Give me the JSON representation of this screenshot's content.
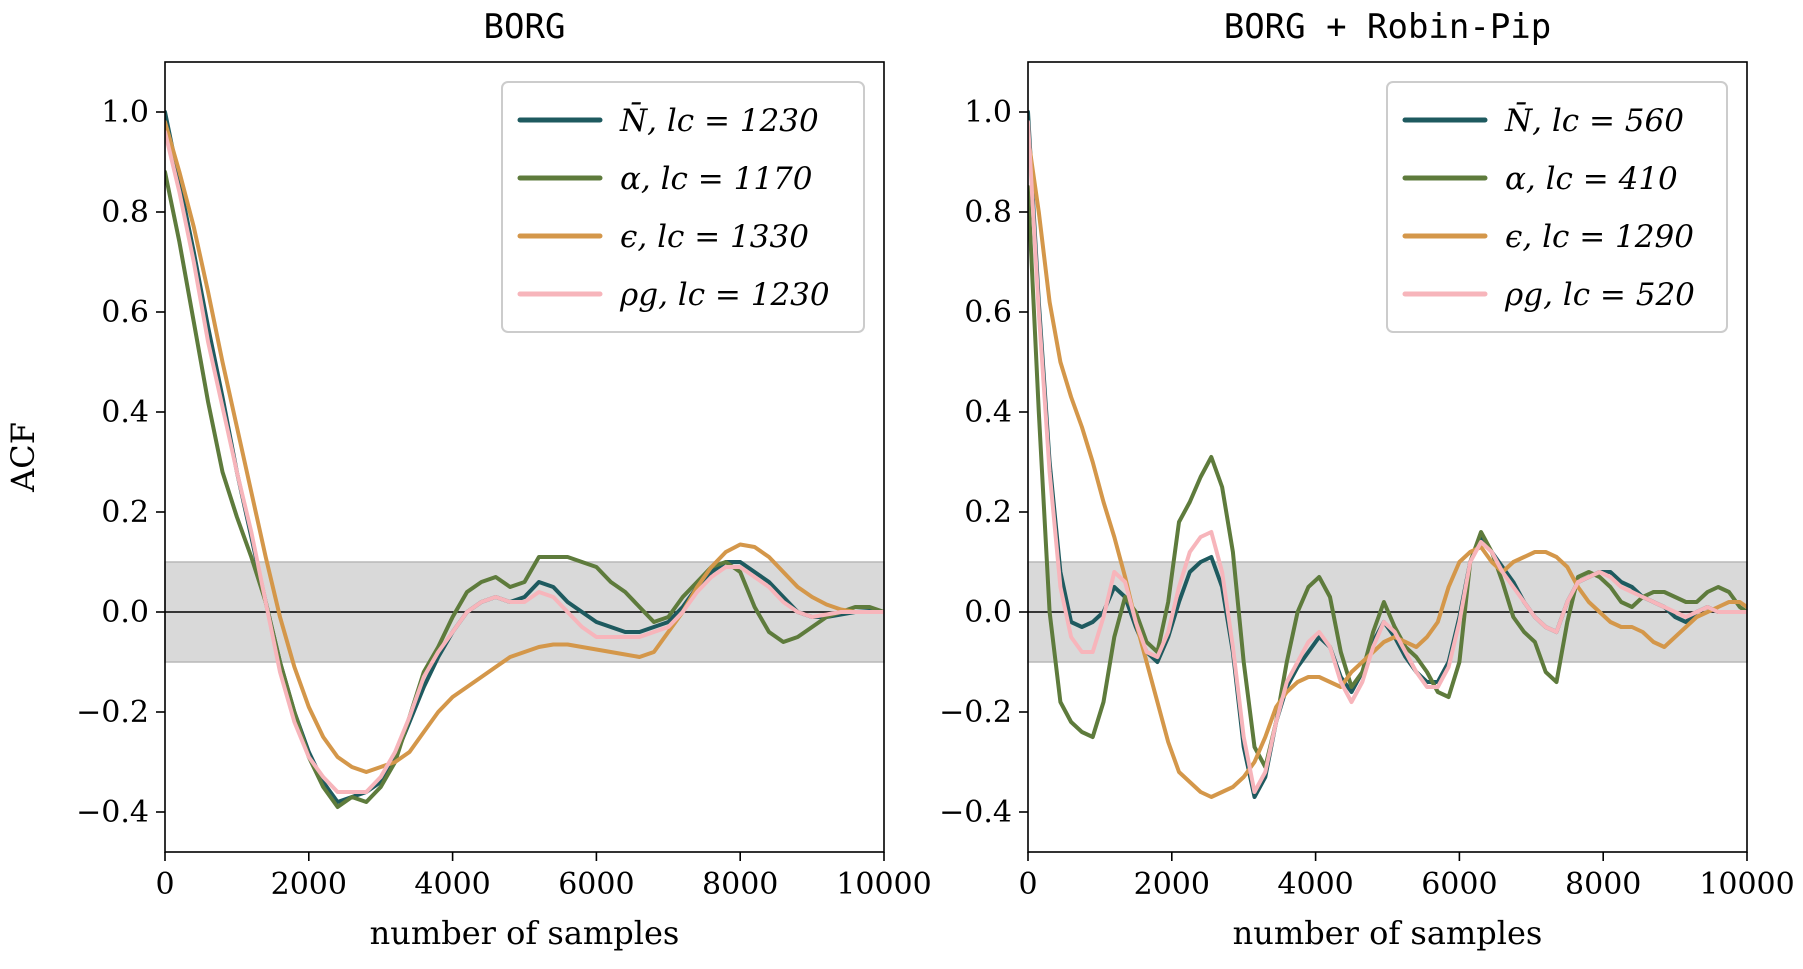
{
  "chart_data": [
    {
      "type": "line",
      "title": "BORG",
      "xlabel": "number of samples",
      "ylabel": "ACF",
      "xlim": [
        0,
        10000
      ],
      "ylim": [
        -0.48,
        1.1
      ],
      "xticks": [
        "0",
        "2000",
        "4000",
        "6000",
        "8000",
        "10000"
      ],
      "yticks": [
        "1.0",
        "0.8",
        "0.6",
        "0.4",
        "0.2",
        "0.0",
        "−0.2",
        "−0.4"
      ],
      "band": {
        "low": -0.1,
        "high": 0.1,
        "color": "#d9d9d9"
      },
      "zero_line": 0,
      "legend_position": "upper right",
      "grid": false,
      "series": [
        {
          "name": "N̄, lc = 1230",
          "color": "#1e5a5f",
          "x": [
            0,
            200,
            400,
            600,
            800,
            1000,
            1200,
            1400,
            1600,
            1800,
            2000,
            2200,
            2400,
            2600,
            2800,
            3000,
            3200,
            3400,
            3600,
            3800,
            4000,
            4200,
            4400,
            4600,
            4800,
            5000,
            5200,
            5400,
            5600,
            5800,
            6000,
            6200,
            6400,
            6600,
            6800,
            7000,
            7200,
            7400,
            7600,
            7800,
            8000,
            8200,
            8400,
            8600,
            8800,
            9000,
            9200,
            9400,
            9600,
            9800,
            10000
          ],
          "y": [
            1.0,
            0.86,
            0.72,
            0.57,
            0.43,
            0.28,
            0.15,
            0.02,
            -0.1,
            -0.2,
            -0.28,
            -0.34,
            -0.38,
            -0.37,
            -0.36,
            -0.34,
            -0.29,
            -0.22,
            -0.15,
            -0.09,
            -0.04,
            0.0,
            0.02,
            0.03,
            0.02,
            0.03,
            0.06,
            0.05,
            0.02,
            0.0,
            -0.02,
            -0.03,
            -0.04,
            -0.04,
            -0.03,
            -0.02,
            0.01,
            0.05,
            0.08,
            0.1,
            0.1,
            0.08,
            0.06,
            0.03,
            0.0,
            -0.01,
            -0.01,
            -0.005,
            0.0,
            0.002,
            0.0
          ]
        },
        {
          "name": "α, lc = 1170",
          "color": "#5e7b3c",
          "x": [
            0,
            200,
            400,
            600,
            800,
            1000,
            1200,
            1400,
            1600,
            1800,
            2000,
            2200,
            2400,
            2600,
            2800,
            3000,
            3200,
            3400,
            3600,
            3800,
            4000,
            4200,
            4400,
            4600,
            4800,
            5000,
            5200,
            5400,
            5600,
            5800,
            6000,
            6200,
            6400,
            6600,
            6800,
            7000,
            7200,
            7400,
            7600,
            7800,
            8000,
            8200,
            8400,
            8600,
            8800,
            9000,
            9200,
            9400,
            9600,
            9800,
            10000
          ],
          "y": [
            0.88,
            0.74,
            0.58,
            0.42,
            0.28,
            0.19,
            0.11,
            0.02,
            -0.1,
            -0.2,
            -0.29,
            -0.35,
            -0.39,
            -0.37,
            -0.38,
            -0.35,
            -0.3,
            -0.21,
            -0.12,
            -0.07,
            -0.01,
            0.04,
            0.06,
            0.07,
            0.05,
            0.06,
            0.11,
            0.11,
            0.11,
            0.1,
            0.09,
            0.06,
            0.04,
            0.01,
            -0.02,
            -0.01,
            0.03,
            0.06,
            0.09,
            0.1,
            0.08,
            0.01,
            -0.04,
            -0.06,
            -0.05,
            -0.03,
            -0.01,
            0.0,
            0.01,
            0.01,
            0.0
          ]
        },
        {
          "name": "ϵ, lc = 1330",
          "color": "#d4974a",
          "x": [
            0,
            200,
            400,
            600,
            800,
            1000,
            1200,
            1400,
            1600,
            1800,
            2000,
            2200,
            2400,
            2600,
            2800,
            3000,
            3200,
            3400,
            3600,
            3800,
            4000,
            4200,
            4400,
            4600,
            4800,
            5000,
            5200,
            5400,
            5600,
            5800,
            6000,
            6200,
            6400,
            6600,
            6800,
            7000,
            7200,
            7400,
            7600,
            7800,
            8000,
            8200,
            8400,
            8600,
            8800,
            9000,
            9200,
            9400,
            9600,
            9800,
            10000
          ],
          "y": [
            0.98,
            0.88,
            0.77,
            0.64,
            0.5,
            0.37,
            0.24,
            0.11,
            -0.01,
            -0.11,
            -0.19,
            -0.25,
            -0.29,
            -0.31,
            -0.32,
            -0.31,
            -0.3,
            -0.28,
            -0.24,
            -0.2,
            -0.17,
            -0.15,
            -0.13,
            -0.11,
            -0.09,
            -0.08,
            -0.07,
            -0.065,
            -0.065,
            -0.07,
            -0.075,
            -0.08,
            -0.085,
            -0.09,
            -0.08,
            -0.04,
            0.0,
            0.05,
            0.09,
            0.12,
            0.135,
            0.13,
            0.11,
            0.08,
            0.05,
            0.03,
            0.015,
            0.005,
            0.0,
            0.0,
            0.0
          ]
        },
        {
          "name": "ρg, lc = 1230",
          "color": "#f7b5bb",
          "x": [
            0,
            200,
            400,
            600,
            800,
            1000,
            1200,
            1400,
            1600,
            1800,
            2000,
            2200,
            2400,
            2600,
            2800,
            3000,
            3200,
            3400,
            3600,
            3800,
            4000,
            4200,
            4400,
            4600,
            4800,
            5000,
            5200,
            5400,
            5600,
            5800,
            6000,
            6200,
            6400,
            6600,
            6800,
            7000,
            7200,
            7400,
            7600,
            7800,
            8000,
            8200,
            8400,
            8600,
            8800,
            9000,
            9200,
            9400,
            9600,
            9800,
            10000
          ],
          "y": [
            0.96,
            0.84,
            0.7,
            0.54,
            0.41,
            0.28,
            0.16,
            0.02,
            -0.12,
            -0.22,
            -0.29,
            -0.33,
            -0.36,
            -0.36,
            -0.36,
            -0.33,
            -0.28,
            -0.21,
            -0.13,
            -0.08,
            -0.04,
            0.0,
            0.02,
            0.03,
            0.02,
            0.02,
            0.04,
            0.03,
            0.0,
            -0.03,
            -0.05,
            -0.05,
            -0.05,
            -0.05,
            -0.04,
            -0.03,
            0.0,
            0.04,
            0.07,
            0.09,
            0.09,
            0.07,
            0.05,
            0.02,
            0.0,
            -0.01,
            -0.005,
            0.0,
            0.0,
            0.0,
            0.0
          ]
        }
      ]
    },
    {
      "type": "line",
      "title": "BORG + Robin-Pip",
      "xlabel": "number of samples",
      "ylabel": "",
      "xlim": [
        0,
        10000
      ],
      "ylim": [
        -0.48,
        1.1
      ],
      "xticks": [
        "0",
        "2000",
        "4000",
        "6000",
        "8000",
        "10000"
      ],
      "yticks": [
        "1.0",
        "0.8",
        "0.6",
        "0.4",
        "0.2",
        "0.0",
        "−0.2",
        "−0.4"
      ],
      "band": {
        "low": -0.1,
        "high": 0.1,
        "color": "#d9d9d9"
      },
      "zero_line": 0,
      "legend_position": "upper right",
      "grid": false,
      "series": [
        {
          "name": "N̄, lc = 560",
          "color": "#1e5a5f",
          "x": [
            0,
            150,
            300,
            450,
            600,
            750,
            900,
            1050,
            1200,
            1350,
            1500,
            1650,
            1800,
            1950,
            2100,
            2250,
            2400,
            2550,
            2700,
            2850,
            3000,
            3150,
            3300,
            3450,
            3600,
            3750,
            3900,
            4050,
            4200,
            4350,
            4500,
            4650,
            4800,
            4950,
            5100,
            5250,
            5400,
            5550,
            5700,
            5850,
            6000,
            6150,
            6300,
            6450,
            6600,
            6750,
            6900,
            7050,
            7200,
            7350,
            7500,
            7650,
            7800,
            7950,
            8100,
            8250,
            8400,
            8550,
            8700,
            8850,
            9000,
            9150,
            9300,
            9450,
            9600,
            9750,
            9900,
            10000
          ],
          "y": [
            1.0,
            0.62,
            0.3,
            0.08,
            -0.02,
            -0.03,
            -0.02,
            0.0,
            0.05,
            0.03,
            -0.03,
            -0.08,
            -0.1,
            -0.05,
            0.02,
            0.08,
            0.1,
            0.11,
            0.05,
            -0.08,
            -0.27,
            -0.37,
            -0.33,
            -0.22,
            -0.15,
            -0.11,
            -0.08,
            -0.05,
            -0.07,
            -0.13,
            -0.16,
            -0.12,
            -0.06,
            -0.02,
            -0.05,
            -0.09,
            -0.12,
            -0.14,
            -0.14,
            -0.1,
            -0.01,
            0.1,
            0.15,
            0.12,
            0.09,
            0.06,
            0.02,
            -0.01,
            -0.03,
            -0.04,
            0.02,
            0.06,
            0.07,
            0.08,
            0.08,
            0.06,
            0.05,
            0.03,
            0.02,
            0.01,
            -0.01,
            -0.02,
            0.0,
            0.01,
            0.0,
            0.0,
            0.0,
            0.0
          ]
        },
        {
          "name": "α, lc = 410",
          "color": "#5e7b3c",
          "x": [
            0,
            150,
            300,
            450,
            600,
            750,
            900,
            1050,
            1200,
            1350,
            1500,
            1650,
            1800,
            1950,
            2100,
            2250,
            2400,
            2550,
            2700,
            2850,
            3000,
            3150,
            3300,
            3450,
            3600,
            3750,
            3900,
            4050,
            4200,
            4350,
            4500,
            4650,
            4800,
            4950,
            5100,
            5250,
            5400,
            5550,
            5700,
            5850,
            6000,
            6150,
            6300,
            6450,
            6600,
            6750,
            6900,
            7050,
            7200,
            7350,
            7500,
            7650,
            7800,
            7950,
            8100,
            8250,
            8400,
            8550,
            8700,
            8850,
            9000,
            9150,
            9300,
            9450,
            9600,
            9750,
            9900,
            10000
          ],
          "y": [
            0.85,
            0.4,
            0.0,
            -0.18,
            -0.22,
            -0.24,
            -0.25,
            -0.18,
            -0.05,
            0.03,
            0.0,
            -0.06,
            -0.08,
            0.02,
            0.18,
            0.22,
            0.27,
            0.31,
            0.25,
            0.12,
            -0.1,
            -0.27,
            -0.31,
            -0.22,
            -0.1,
            0.0,
            0.05,
            0.07,
            0.03,
            -0.08,
            -0.15,
            -0.12,
            -0.04,
            0.02,
            -0.03,
            -0.07,
            -0.09,
            -0.12,
            -0.16,
            -0.17,
            -0.1,
            0.1,
            0.16,
            0.12,
            0.06,
            -0.01,
            -0.04,
            -0.06,
            -0.12,
            -0.14,
            -0.02,
            0.07,
            0.08,
            0.07,
            0.05,
            0.02,
            0.01,
            0.03,
            0.04,
            0.04,
            0.03,
            0.02,
            0.02,
            0.04,
            0.05,
            0.04,
            0.01,
            0.0
          ]
        },
        {
          "name": "ϵ, lc = 1290",
          "color": "#d4974a",
          "x": [
            0,
            150,
            300,
            450,
            600,
            750,
            900,
            1050,
            1200,
            1350,
            1500,
            1650,
            1800,
            1950,
            2100,
            2250,
            2400,
            2550,
            2700,
            2850,
            3000,
            3150,
            3300,
            3450,
            3600,
            3750,
            3900,
            4050,
            4200,
            4350,
            4500,
            4650,
            4800,
            4950,
            5100,
            5250,
            5400,
            5550,
            5700,
            5850,
            6000,
            6150,
            6300,
            6450,
            6600,
            6750,
            6900,
            7050,
            7200,
            7350,
            7500,
            7650,
            7800,
            7950,
            8100,
            8250,
            8400,
            8550,
            8700,
            8850,
            9000,
            9150,
            9300,
            9450,
            9600,
            9750,
            9900,
            10000
          ],
          "y": [
            0.95,
            0.8,
            0.62,
            0.5,
            0.43,
            0.37,
            0.3,
            0.22,
            0.15,
            0.07,
            -0.02,
            -0.1,
            -0.18,
            -0.26,
            -0.32,
            -0.34,
            -0.36,
            -0.37,
            -0.36,
            -0.35,
            -0.33,
            -0.3,
            -0.25,
            -0.19,
            -0.16,
            -0.14,
            -0.13,
            -0.13,
            -0.14,
            -0.15,
            -0.12,
            -0.1,
            -0.08,
            -0.06,
            -0.05,
            -0.06,
            -0.07,
            -0.05,
            -0.02,
            0.05,
            0.1,
            0.12,
            0.13,
            0.1,
            0.08,
            0.1,
            0.11,
            0.12,
            0.12,
            0.11,
            0.09,
            0.05,
            0.02,
            0.0,
            -0.02,
            -0.03,
            -0.03,
            -0.04,
            -0.06,
            -0.07,
            -0.05,
            -0.03,
            -0.01,
            0.0,
            0.01,
            0.02,
            0.02,
            0.01
          ]
        },
        {
          "name": "ρg, lc = 520",
          "color": "#f7b5bb",
          "x": [
            0,
            150,
            300,
            450,
            600,
            750,
            900,
            1050,
            1200,
            1350,
            1500,
            1650,
            1800,
            1950,
            2100,
            2250,
            2400,
            2550,
            2700,
            2850,
            3000,
            3150,
            3300,
            3450,
            3600,
            3750,
            3900,
            4050,
            4200,
            4350,
            4500,
            4650,
            4800,
            4950,
            5100,
            5250,
            5400,
            5550,
            5700,
            5850,
            6000,
            6150,
            6300,
            6450,
            6600,
            6750,
            6900,
            7050,
            7200,
            7350,
            7500,
            7650,
            7800,
            7950,
            8100,
            8250,
            8400,
            8550,
            8700,
            8850,
            9000,
            9150,
            9300,
            9450,
            9600,
            9750,
            9900,
            10000
          ],
          "y": [
            0.98,
            0.6,
            0.28,
            0.05,
            -0.05,
            -0.08,
            -0.08,
            -0.01,
            0.08,
            0.06,
            -0.02,
            -0.08,
            -0.09,
            -0.04,
            0.05,
            0.12,
            0.15,
            0.16,
            0.08,
            -0.07,
            -0.25,
            -0.36,
            -0.32,
            -0.22,
            -0.14,
            -0.1,
            -0.06,
            -0.04,
            -0.07,
            -0.14,
            -0.18,
            -0.14,
            -0.07,
            -0.02,
            -0.04,
            -0.08,
            -0.12,
            -0.15,
            -0.15,
            -0.11,
            -0.02,
            0.1,
            0.14,
            0.12,
            0.08,
            0.05,
            0.02,
            -0.01,
            -0.03,
            -0.04,
            0.02,
            0.06,
            0.07,
            0.08,
            0.07,
            0.05,
            0.04,
            0.03,
            0.02,
            0.01,
            0.0,
            -0.01,
            0.0,
            0.01,
            0.0,
            0.0,
            0.0,
            0.0
          ]
        }
      ]
    }
  ]
}
